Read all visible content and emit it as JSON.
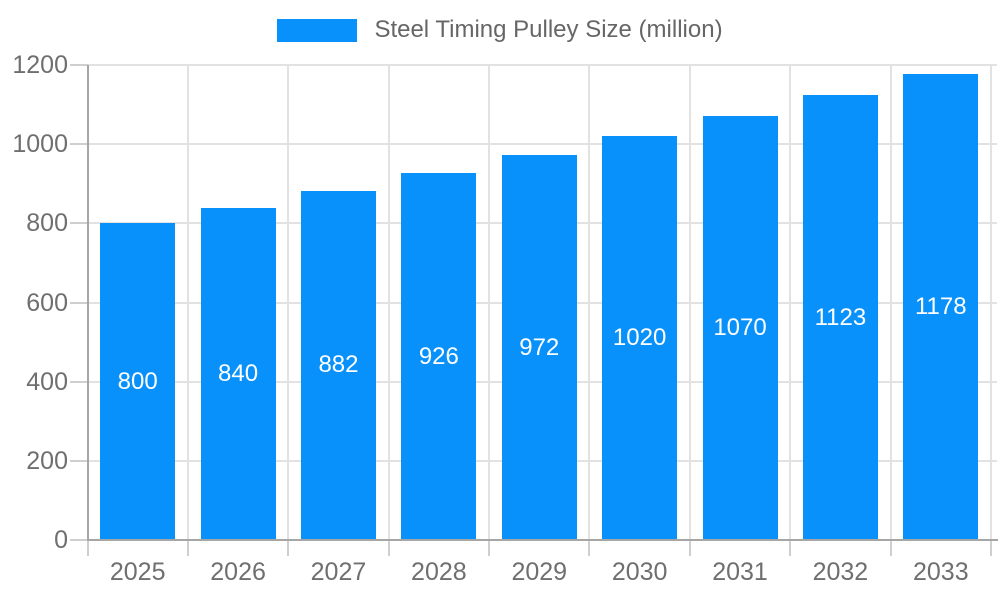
{
  "legend": {
    "label": "Steel Timing Pulley Size (million)"
  },
  "chart_data": {
    "type": "bar",
    "title": "Steel Timing Pulley Size (million)",
    "categories": [
      "2025",
      "2026",
      "2027",
      "2028",
      "2029",
      "2030",
      "2031",
      "2032",
      "2033"
    ],
    "values": [
      800,
      840,
      882,
      926,
      972,
      1020,
      1070,
      1123,
      1178
    ],
    "xlabel": "",
    "ylabel": "",
    "ylim": [
      0,
      1200
    ],
    "yticks": [
      0,
      200,
      400,
      600,
      800,
      1000,
      1200
    ],
    "grid": true,
    "legend_position": "top-center",
    "colors": {
      "bar": "#0991fb",
      "value_label": "#ffffff",
      "grid": "#e2e2e2",
      "tick": "#cfcfcf",
      "axis_line": "#a6a6a6",
      "axis_text": "#6f6f6f",
      "legend_text": "#666666",
      "background": "#ffffff"
    }
  }
}
